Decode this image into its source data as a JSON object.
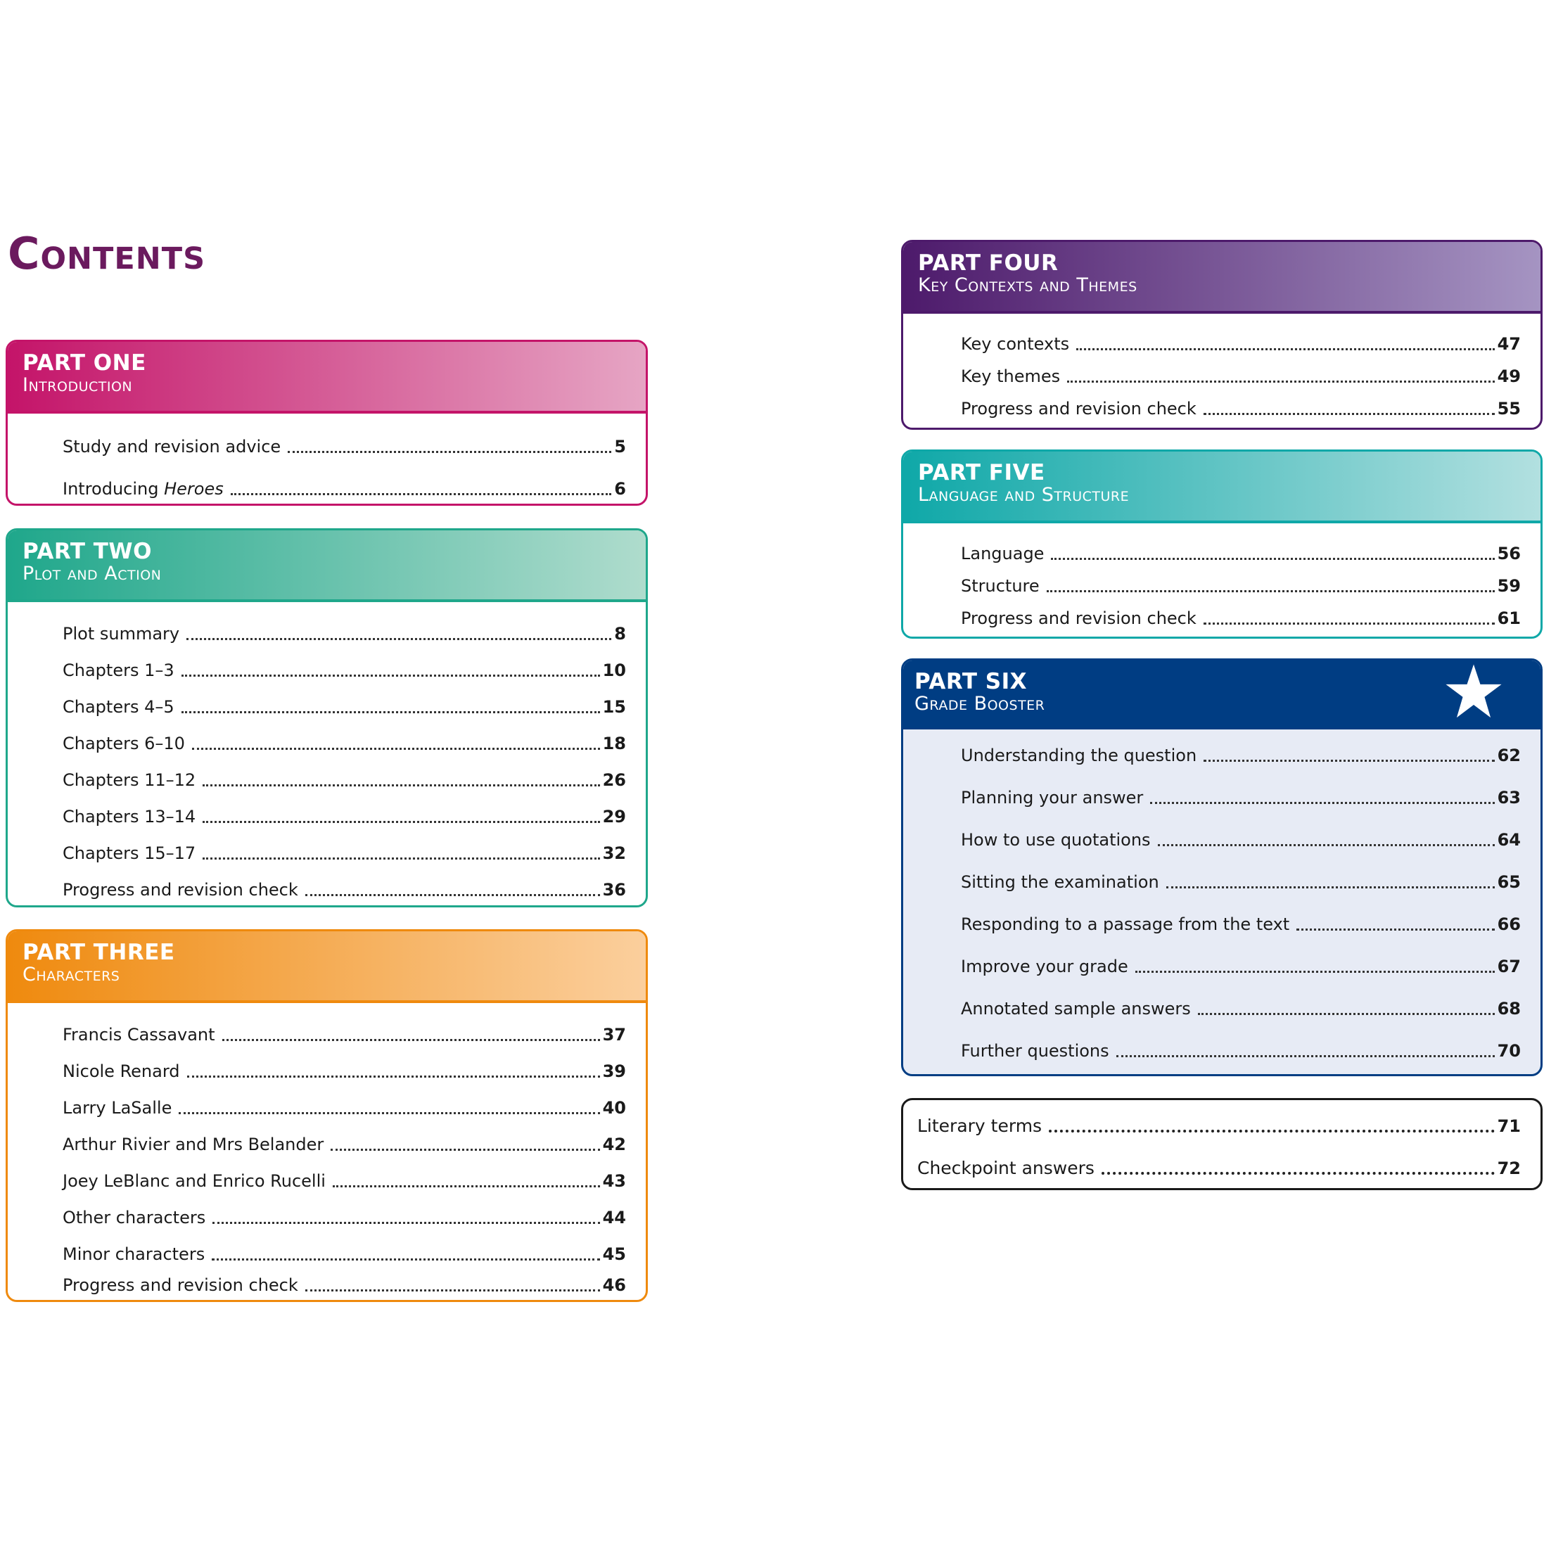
{
  "heading": "Contents",
  "parts": [
    {
      "id": "one",
      "title": "PART ONE",
      "subtitle": "Introduction",
      "accent": "#c41469",
      "entries": [
        {
          "label": "Study and revision advice",
          "page": "5"
        },
        {
          "label": "Introducing ",
          "label_italic": "Heroes",
          "page": "6"
        }
      ]
    },
    {
      "id": "two",
      "title": "PART TWO",
      "subtitle": "Plot and Action",
      "accent": "#1fa78b",
      "entries": [
        {
          "label": "Plot summary",
          "page": "8"
        },
        {
          "label": "Chapters 1–3",
          "page": "10"
        },
        {
          "label": "Chapters 4–5",
          "page": "15"
        },
        {
          "label": "Chapters 6–10",
          "page": "18"
        },
        {
          "label": "Chapters 11–12",
          "page": "26"
        },
        {
          "label": "Chapters 13–14",
          "page": "29"
        },
        {
          "label": "Chapters 15–17",
          "page": "32"
        },
        {
          "label": "Progress and revision check",
          "page": "36"
        }
      ]
    },
    {
      "id": "three",
      "title": "PART THREE",
      "subtitle": "Characters",
      "accent": "#ef8a0e",
      "entries": [
        {
          "label": "Francis Cassavant",
          "page": "37"
        },
        {
          "label": "Nicole Renard",
          "page": "39"
        },
        {
          "label": "Larry LaSalle",
          "page": "40"
        },
        {
          "label": "Arthur Rivier and Mrs Belander",
          "page": "42"
        },
        {
          "label": "Joey LeBlanc and Enrico Rucelli",
          "page": "43"
        },
        {
          "label": "Other characters",
          "page": "44"
        },
        {
          "label": "Minor characters",
          "page": "45"
        },
        {
          "label": "Progress and revision check",
          "page": "46"
        }
      ]
    },
    {
      "id": "four",
      "title": "PART FOUR",
      "subtitle": "Key Contexts and Themes",
      "accent": "#4d1a6b",
      "entries": [
        {
          "label": "Key contexts",
          "page": "47"
        },
        {
          "label": "Key themes",
          "page": "49"
        },
        {
          "label": "Progress and revision check",
          "page": "55"
        }
      ]
    },
    {
      "id": "five",
      "title": "PART FIVE",
      "subtitle": "Language and Structure",
      "accent": "#0fa8a8",
      "entries": [
        {
          "label": "Language",
          "page": "56"
        },
        {
          "label": "Structure",
          "page": "59"
        },
        {
          "label": "Progress and revision check",
          "page": "61"
        }
      ]
    },
    {
      "id": "six",
      "title": "PART SIX",
      "subtitle": "Grade Booster",
      "accent": "#003d83",
      "icon": "star-icon",
      "entries": [
        {
          "label": "Understanding the question",
          "page": "62"
        },
        {
          "label": "Planning your answer",
          "page": "63"
        },
        {
          "label": "How to use quotations",
          "page": "64"
        },
        {
          "label": "Sitting the examination",
          "page": "65"
        },
        {
          "label": "Responding to a passage from the text",
          "page": "66"
        },
        {
          "label": "Improve your grade",
          "page": "67"
        },
        {
          "label": "Annotated sample answers",
          "page": "68"
        },
        {
          "label": "Further questions",
          "page": "70"
        }
      ]
    }
  ],
  "extras": [
    {
      "label": "Literary terms",
      "page": "71"
    },
    {
      "label": "Checkpoint answers",
      "page": "72"
    }
  ]
}
